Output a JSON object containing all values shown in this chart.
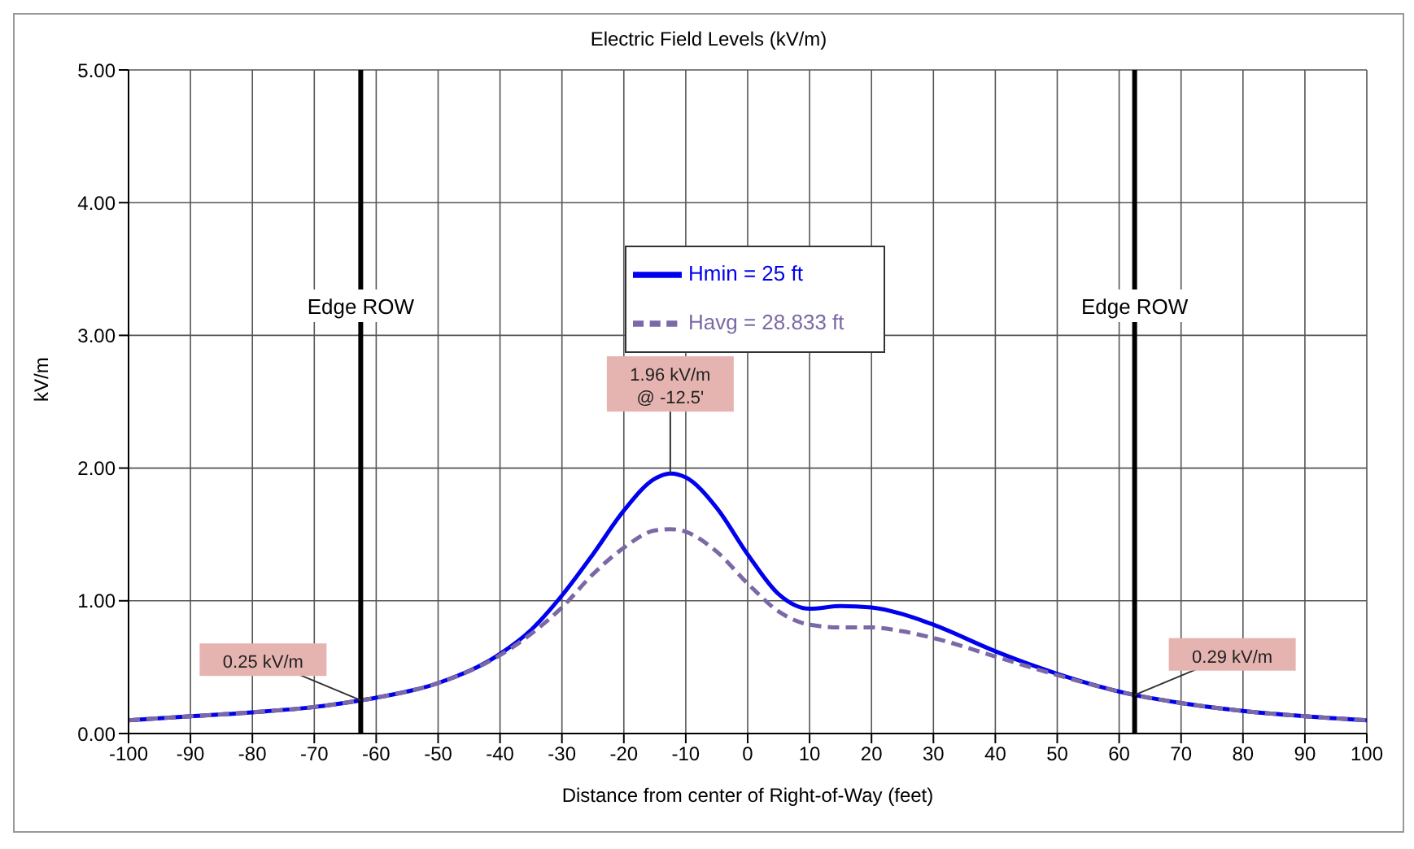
{
  "chart_data": {
    "type": "line",
    "title": "Electric Field Levels (kV/m)",
    "xlabel": "Distance from center of Right-of-Way (feet)",
    "ylabel": "kV/m",
    "x": [
      -100,
      -90,
      -80,
      -70,
      -62.5,
      -60,
      -50,
      -40,
      -35,
      -30,
      -25,
      -20,
      -15,
      -12.5,
      -10,
      -5,
      0,
      5,
      10,
      15,
      20,
      25,
      30,
      40,
      50,
      62.5,
      70,
      80,
      90,
      100
    ],
    "series": [
      {
        "name": "Hmin = 25 ft",
        "color": "#0000ee",
        "line_style": "solid",
        "values": [
          0.1,
          0.13,
          0.16,
          0.2,
          0.25,
          0.27,
          0.38,
          0.6,
          0.78,
          1.04,
          1.35,
          1.68,
          1.92,
          1.96,
          1.93,
          1.7,
          1.35,
          1.05,
          0.94,
          0.96,
          0.95,
          0.9,
          0.82,
          0.62,
          0.45,
          0.29,
          0.23,
          0.17,
          0.13,
          0.1
        ]
      },
      {
        "name": "Havg = 28.833 ft",
        "color": "#7b68a6",
        "line_style": "dashed",
        "values": [
          0.1,
          0.13,
          0.16,
          0.2,
          0.25,
          0.27,
          0.38,
          0.59,
          0.75,
          0.95,
          1.2,
          1.4,
          1.53,
          1.54,
          1.52,
          1.37,
          1.13,
          0.92,
          0.82,
          0.8,
          0.8,
          0.77,
          0.72,
          0.58,
          0.44,
          0.29,
          0.23,
          0.17,
          0.13,
          0.1
        ]
      }
    ],
    "xlim": [
      -100,
      100
    ],
    "xticks": [
      -100,
      -90,
      -80,
      -70,
      -60,
      -50,
      -40,
      -30,
      -20,
      -10,
      0,
      10,
      20,
      30,
      40,
      50,
      60,
      70,
      80,
      90,
      100
    ],
    "ylim": [
      0,
      5
    ],
    "yticks": [
      {
        "value": 0,
        "label": "0.00"
      },
      {
        "value": 1,
        "label": "1.00"
      },
      {
        "value": 2,
        "label": "2.00"
      },
      {
        "value": 3,
        "label": "3.00"
      },
      {
        "value": 4,
        "label": "4.00"
      },
      {
        "value": 5,
        "label": "5.00"
      }
    ],
    "ref_lines": [
      {
        "axis": "x",
        "value": -62.5,
        "label": "Edge ROW",
        "color": "#000000"
      },
      {
        "axis": "x",
        "value": 62.5,
        "label": "Edge ROW",
        "color": "#000000"
      }
    ],
    "annotations": [
      {
        "text": "1.96 kV/m\n@ -12.5'",
        "x": -12.5,
        "y": 1.96
      },
      {
        "text": "0.25 kV/m",
        "x": -62.5,
        "y": 0.25
      },
      {
        "text": "0.29 kV/m",
        "x": 62.5,
        "y": 0.29
      }
    ],
    "grid": true,
    "legend": "top",
    "marker": "none"
  }
}
